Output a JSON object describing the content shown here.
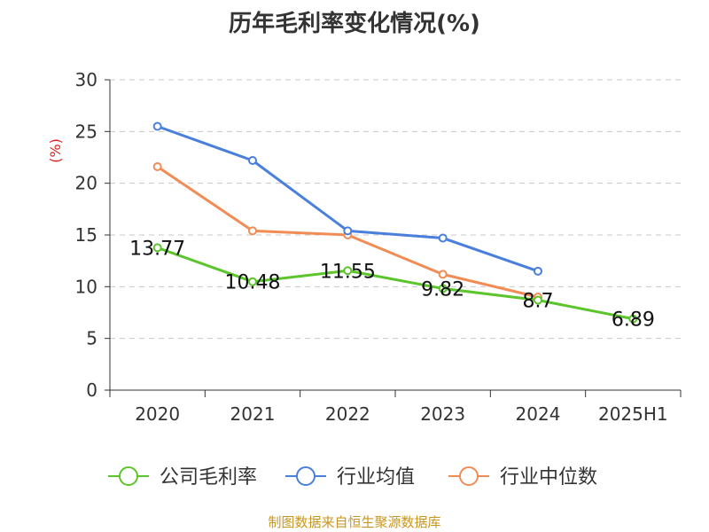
{
  "chart_data": {
    "type": "line",
    "title": "历年毛利率变化情况(%)",
    "ylabel": "(%)",
    "categories": [
      "2020",
      "2021",
      "2022",
      "2023",
      "2024",
      "2025H1"
    ],
    "ylim": [
      0,
      30
    ],
    "yticks": [
      0,
      5,
      10,
      15,
      20,
      25,
      30
    ],
    "grid": true,
    "legend_position": "bottom",
    "series": [
      {
        "name": "公司毛利率",
        "color": "#5cc52c",
        "values": [
          13.77,
          10.48,
          11.55,
          9.82,
          8.7,
          6.89
        ],
        "labels": [
          "13.77",
          "10.48",
          "11.55",
          "9.82",
          "8.7",
          "6.89"
        ]
      },
      {
        "name": "行业均值",
        "color": "#4a7fdb",
        "values": [
          25.5,
          22.2,
          15.4,
          14.7,
          11.5,
          null
        ]
      },
      {
        "name": "行业中位数",
        "color": "#f28c55",
        "values": [
          21.6,
          15.4,
          15.0,
          11.2,
          9.0,
          null
        ]
      }
    ]
  },
  "source": "制图数据来自恒生聚源数据库"
}
